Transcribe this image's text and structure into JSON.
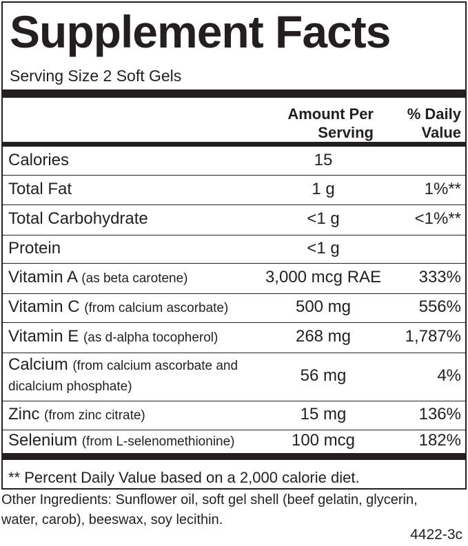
{
  "header": {
    "title": "Supplement Facts",
    "serving_size": "Serving Size 2 Soft Gels"
  },
  "table": {
    "columns": [
      "Amount Per Serving",
      "% Daily Value"
    ],
    "rows": [
      {
        "name": "Calories",
        "amount": "15"
      },
      {
        "name": "Total Fat",
        "amount": "1 g",
        "dv": "1%**"
      },
      {
        "name": "Total Carbohydrate",
        "amount": "<1 g",
        "dv": "<1%**"
      },
      {
        "name": "Protein",
        "amount": "<1 g"
      },
      {
        "name": "Vitamin A",
        "source": "(as beta carotene)",
        "amount": "3,000 mcg RAE",
        "dv": "333%"
      },
      {
        "name": "Vitamin C",
        "source": "(from calcium ascorbate)",
        "amount": "500 mg",
        "dv": "556%"
      },
      {
        "name": "Vitamin E",
        "source": "(as d-alpha tocopherol)",
        "amount": "268 mg",
        "dv": "1,787%"
      },
      {
        "name": "Calcium",
        "source": "(from calcium ascorbate and dicalcium phosphate)",
        "amount": "56 mg",
        "dv": "4%"
      },
      {
        "name": "Zinc",
        "source": "(from zinc citrate)",
        "amount": "15 mg",
        "dv": "136%"
      },
      {
        "name": "Selenium",
        "source": "(from L-selenomethionine)",
        "amount": "100 mcg",
        "dv": "182%"
      }
    ],
    "footnote": "** Percent Daily Value based on a 2,000 calorie diet."
  },
  "other_ingredients": "Other Ingredients: Sunflower oil, soft gel shell (beef gelatin, glycerin, water, carob), beeswax, soy lecithin.",
  "code": "4422-3c"
}
